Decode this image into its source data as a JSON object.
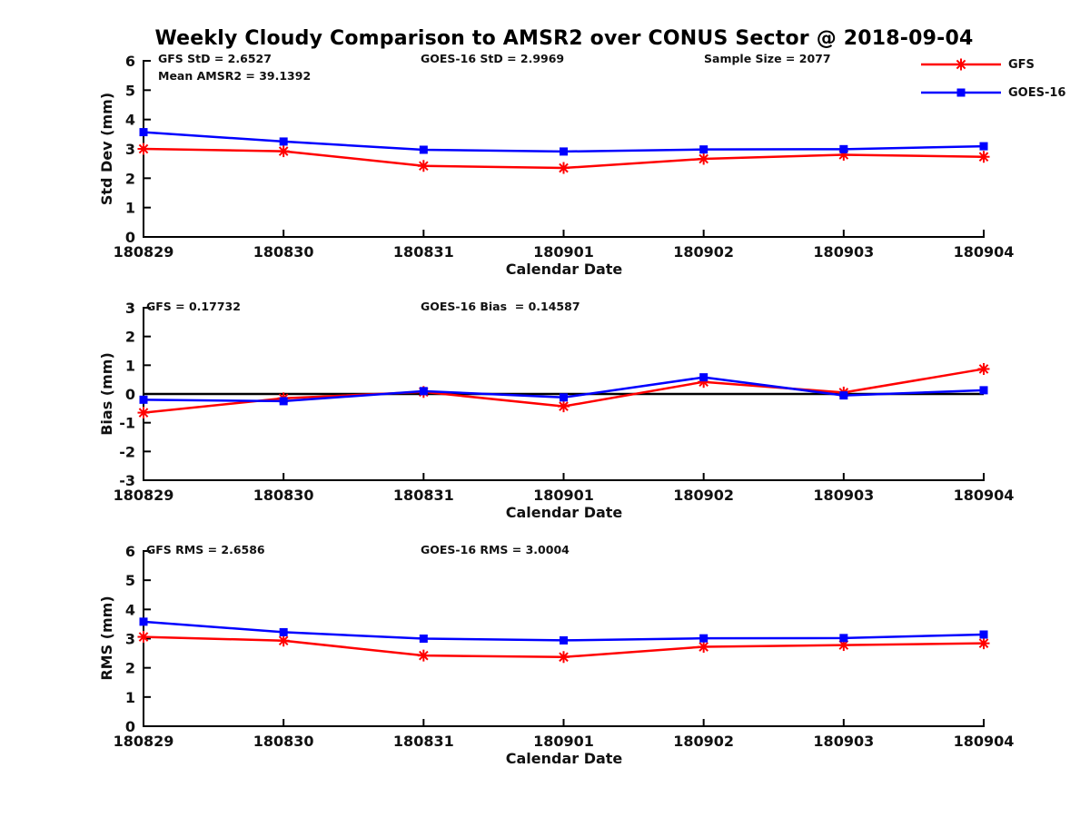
{
  "title": "Weekly Cloudy Comparison to AMSR2 over CONUS Sector @ 2018-09-04",
  "colors": {
    "gfs_red": "#ff0000",
    "goes16_blue": "#0000ff",
    "axis_black": "#000000",
    "background": "#ffffff"
  },
  "legend": {
    "position": "top-right",
    "entries": [
      "GFS",
      "GOES-16"
    ]
  },
  "chart_data": [
    {
      "type": "line",
      "panel": "std-dev",
      "ylabel": "Std Dev (mm)",
      "xlabel": "Calendar Date",
      "ylim": [
        0,
        6
      ],
      "yticks": [
        0,
        1,
        2,
        3,
        4,
        5,
        6
      ],
      "grid": false,
      "zero_line": false,
      "categories": [
        "180829",
        "180830",
        "180831",
        "180901",
        "180902",
        "180903",
        "180904"
      ],
      "series": [
        {
          "name": "GFS",
          "color": "#ff0000",
          "marker": "asterisk",
          "values": [
            3.0,
            2.92,
            2.42,
            2.35,
            2.66,
            2.8,
            2.73
          ]
        },
        {
          "name": "GOES-16",
          "color": "#0000ff",
          "marker": "square",
          "values": [
            3.57,
            3.25,
            2.97,
            2.91,
            2.98,
            2.99,
            3.09
          ]
        }
      ],
      "annotations": [
        "GFS StD = 2.6527",
        "Mean AMSR2 = 39.1392",
        "GOES-16 StD = 2.9969",
        "Sample Size = 2077"
      ]
    },
    {
      "type": "line",
      "panel": "bias",
      "ylabel": "Bias (mm)",
      "xlabel": "Calendar Date",
      "ylim": [
        -3,
        3
      ],
      "yticks": [
        -3,
        -2,
        -1,
        0,
        1,
        2,
        3
      ],
      "grid": false,
      "zero_line": true,
      "categories": [
        "180829",
        "180830",
        "180831",
        "180901",
        "180902",
        "180903",
        "180904"
      ],
      "series": [
        {
          "name": "GFS",
          "color": "#ff0000",
          "marker": "asterisk",
          "values": [
            -0.65,
            -0.15,
            0.07,
            -0.43,
            0.42,
            0.05,
            0.87
          ]
        },
        {
          "name": "GOES-16",
          "color": "#0000ff",
          "marker": "square",
          "values": [
            -0.2,
            -0.25,
            0.1,
            -0.12,
            0.58,
            -0.05,
            0.13
          ]
        }
      ],
      "annotations": [
        "GFS = 0.17732",
        "GOES-16 Bias  = 0.14587"
      ]
    },
    {
      "type": "line",
      "panel": "rms",
      "ylabel": "RMS (mm)",
      "xlabel": "Calendar Date",
      "ylim": [
        0,
        6
      ],
      "yticks": [
        0,
        1,
        2,
        3,
        4,
        5,
        6
      ],
      "grid": false,
      "zero_line": false,
      "categories": [
        "180829",
        "180830",
        "180831",
        "180901",
        "180902",
        "180903",
        "180904"
      ],
      "series": [
        {
          "name": "GFS",
          "color": "#ff0000",
          "marker": "asterisk",
          "values": [
            3.06,
            2.93,
            2.42,
            2.37,
            2.72,
            2.78,
            2.84
          ]
        },
        {
          "name": "GOES-16",
          "color": "#0000ff",
          "marker": "square",
          "values": [
            3.58,
            3.22,
            3.0,
            2.94,
            3.01,
            3.02,
            3.14
          ]
        }
      ],
      "annotations": [
        "GFS RMS = 2.6586",
        "GOES-16 RMS = 3.0004"
      ]
    }
  ]
}
